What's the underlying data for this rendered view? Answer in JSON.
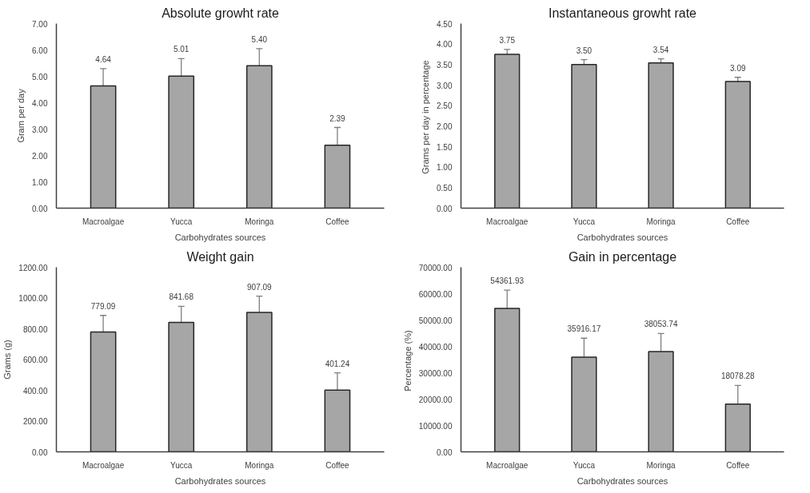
{
  "chart_data": [
    {
      "type": "bar",
      "title": "Absolute growht rate",
      "xlabel": "Carbohydrates sources",
      "ylabel": "Gram per day",
      "categories": [
        "Macroalgae",
        "Yucca",
        "Moringa",
        "Coffee"
      ],
      "values": [
        4.64,
        5.01,
        5.4,
        2.39
      ],
      "value_labels": [
        "4.64",
        "5.01",
        "5.40",
        "2.39"
      ],
      "errors": [
        [
          4.64,
          5.29
        ],
        [
          5.01,
          5.67
        ],
        [
          5.4,
          6.05
        ],
        [
          2.39,
          3.06
        ]
      ],
      "color": "#a6a6a6",
      "ylim": [
        0,
        7
      ],
      "yticks": [
        {
          "value": 0,
          "label": "0.00"
        },
        {
          "value": 1,
          "label": "1.00"
        },
        {
          "value": 2,
          "label": "2.00"
        },
        {
          "value": 3,
          "label": "3.00"
        },
        {
          "value": 4,
          "label": "4.00"
        },
        {
          "value": 5,
          "label": "5.00"
        },
        {
          "value": 6,
          "label": "6.00"
        },
        {
          "value": 7,
          "label": "7.00"
        }
      ],
      "grid": false
    },
    {
      "type": "bar",
      "title": "Instantaneous growht rate",
      "xlabel": "Carbohydrates sources",
      "ylabel": "Grams per  day in percentage",
      "categories": [
        "Macroalgae",
        "Yucca",
        "Moringa",
        "Coffee"
      ],
      "values": [
        3.75,
        3.5,
        3.54,
        3.09
      ],
      "value_labels": [
        "3.75",
        "3.50",
        "3.54",
        "3.09"
      ],
      "errors": [
        [
          3.75,
          3.87
        ],
        [
          3.5,
          3.62
        ],
        [
          3.54,
          3.64
        ],
        [
          3.09,
          3.19
        ]
      ],
      "color": "#a6a6a6",
      "ylim": [
        0,
        4.5
      ],
      "yticks": [
        {
          "value": 0,
          "label": "0.00"
        },
        {
          "value": 0.5,
          "label": "0.50"
        },
        {
          "value": 1,
          "label": "1.00"
        },
        {
          "value": 1.5,
          "label": "1.50"
        },
        {
          "value": 2,
          "label": "2.00"
        },
        {
          "value": 2.5,
          "label": "2.50"
        },
        {
          "value": 3,
          "label": "3.00"
        },
        {
          "value": 3.5,
          "label": "3.50"
        },
        {
          "value": 4,
          "label": "4.00"
        },
        {
          "value": 4.5,
          "label": "4.50"
        }
      ],
      "grid": false
    },
    {
      "type": "bar",
      "title": "Weight gain",
      "xlabel": "Carbohydrates sources",
      "ylabel": "Grams (g)",
      "categories": [
        "Macroalgae",
        "Yucca",
        "Moringa",
        "Coffee"
      ],
      "values": [
        779.09,
        841.68,
        907.09,
        401.24
      ],
      "value_labels": [
        "779.09",
        "841.68",
        "907.09",
        "401.24"
      ],
      "errors": [
        [
          779.09,
          887
        ],
        [
          841.68,
          946
        ],
        [
          907.09,
          1012
        ],
        [
          401.24,
          514
        ]
      ],
      "color": "#a6a6a6",
      "ylim": [
        0,
        1200
      ],
      "yticks": [
        {
          "value": 0,
          "label": "0.00"
        },
        {
          "value": 200,
          "label": "200.00"
        },
        {
          "value": 400,
          "label": "400.00"
        },
        {
          "value": 600,
          "label": "600.00"
        },
        {
          "value": 800,
          "label": "800.00"
        },
        {
          "value": 1000,
          "label": "1000.00"
        },
        {
          "value": 1200,
          "label": "1200.00"
        }
      ],
      "grid": false
    },
    {
      "type": "bar",
      "title": "Gain in percentage",
      "xlabel": "Carbohydrates sources",
      "ylabel": "Percentage  (%)",
      "categories": [
        "Macroalgae",
        "Yucca",
        "Moringa",
        "Coffee"
      ],
      "values": [
        54361.93,
        35916.17,
        38053.74,
        18078.28
      ],
      "value_labels": [
        "54361.93",
        "35916.17",
        "38053.74",
        "18078.28"
      ],
      "errors": [
        [
          54361.93,
          61300
        ],
        [
          35916.17,
          43100
        ],
        [
          38053.74,
          44900
        ],
        [
          18078.28,
          25200
        ]
      ],
      "color": "#a6a6a6",
      "ylim": [
        0,
        70000
      ],
      "yticks": [
        {
          "value": 0,
          "label": "0.00"
        },
        {
          "value": 10000,
          "label": "10000.00"
        },
        {
          "value": 20000,
          "label": "20000.00"
        },
        {
          "value": 30000,
          "label": "30000.00"
        },
        {
          "value": 40000,
          "label": "40000.00"
        },
        {
          "value": 50000,
          "label": "50000.00"
        },
        {
          "value": 60000,
          "label": "60000.00"
        },
        {
          "value": 70000,
          "label": "70000.00"
        }
      ],
      "grid": false
    }
  ]
}
